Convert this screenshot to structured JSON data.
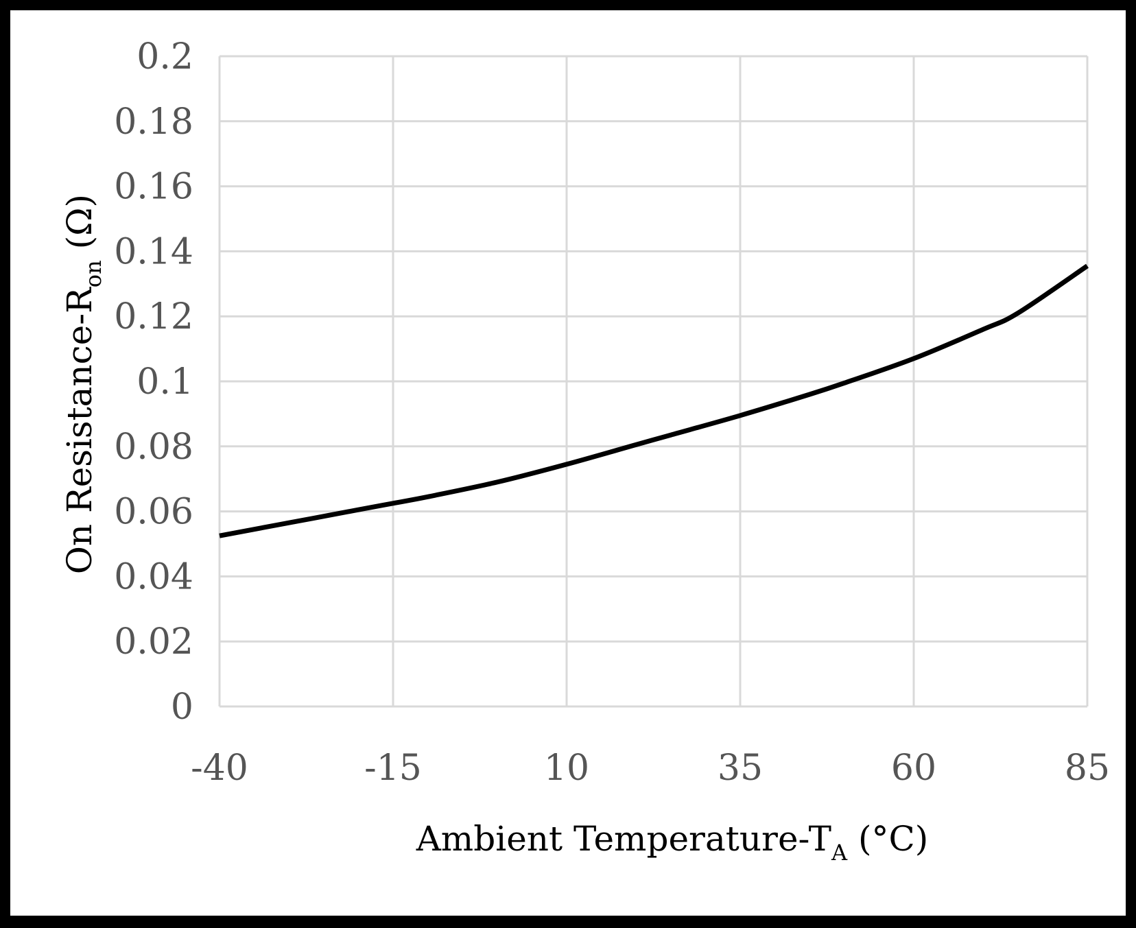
{
  "chart_data": {
    "type": "line",
    "title": "",
    "xlabel": {
      "main": "Ambient Temperature-T",
      "sub": "A",
      "suffix": " (°C)"
    },
    "ylabel": {
      "main": "On Resistance-R",
      "sub": "on",
      "suffix": " (Ω)"
    },
    "xlim": [
      -40,
      85
    ],
    "ylim": [
      0,
      0.2
    ],
    "x_ticks": [
      -40,
      -15,
      10,
      35,
      60,
      85
    ],
    "x_tick_labels": [
      "-40",
      "-15",
      "10",
      "35",
      "60",
      "85"
    ],
    "y_ticks": [
      0,
      0.02,
      0.04,
      0.06,
      0.08,
      0.1,
      0.12,
      0.14,
      0.16,
      0.18,
      0.2
    ],
    "y_tick_labels": [
      "0",
      "0.02",
      "0.04",
      "0.06",
      "0.08",
      "0.1",
      "0.12",
      "0.14",
      "0.16",
      "0.18",
      "0.2"
    ],
    "grid": true,
    "legend": "none",
    "series": [
      {
        "name": "R_on",
        "color": "#000000",
        "x": [
          -40,
          -30,
          -20,
          -15,
          -10,
          0,
          10,
          20,
          25,
          35,
          45,
          50,
          60,
          70,
          75,
          85
        ],
        "y": [
          0.0525,
          0.0565,
          0.0605,
          0.0625,
          0.0645,
          0.069,
          0.0745,
          0.0805,
          0.0835,
          0.0895,
          0.096,
          0.0995,
          0.107,
          0.116,
          0.121,
          0.1355
        ]
      }
    ]
  },
  "colors": {
    "background_outer": "#000000",
    "plot_background": "#ffffff",
    "grid": "#d9d9d9",
    "tick_text": "#555555",
    "line": "#000000"
  }
}
